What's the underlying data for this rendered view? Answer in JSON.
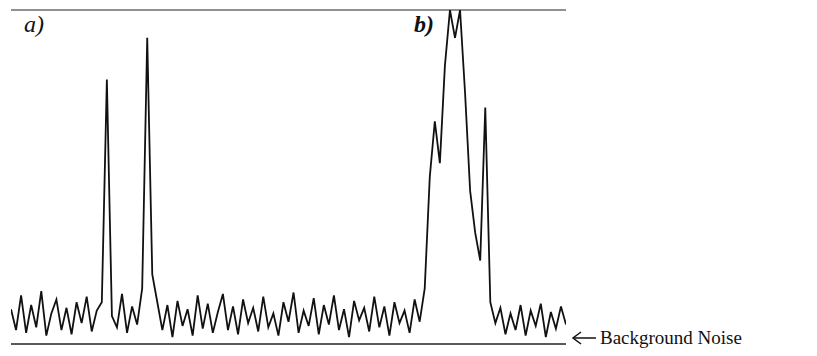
{
  "chart_data": {
    "type": "line",
    "annotations": [
      "a)",
      "b)",
      "Background Noise"
    ],
    "x": [
      0,
      5,
      10,
      15,
      20,
      25,
      30,
      35,
      40,
      45,
      50,
      55,
      60,
      65,
      70,
      75,
      80,
      85,
      90,
      95,
      100,
      105,
      110,
      115,
      120,
      125,
      130,
      135,
      140,
      145,
      150,
      155,
      160,
      165,
      170,
      175,
      180,
      185,
      190,
      195,
      200,
      205,
      210,
      215,
      220,
      225,
      230,
      235,
      240,
      245,
      250,
      255,
      260,
      265,
      270,
      275,
      280,
      285,
      290,
      295,
      300,
      305,
      310,
      315,
      320,
      325,
      330,
      335,
      340,
      345,
      350,
      355,
      360,
      365,
      370,
      375,
      380,
      385,
      390,
      395,
      400,
      405,
      410,
      415,
      420,
      425,
      430,
      435,
      440,
      445,
      450,
      455,
      460,
      465,
      470,
      475,
      480,
      485,
      490,
      495,
      500,
      505,
      510,
      515,
      520,
      525,
      530,
      535,
      540,
      545,
      550
    ],
    "values": [
      2.5,
      1,
      3.5,
      0.8,
      2.8,
      1.2,
      3.8,
      0.6,
      2.2,
      3.2,
      1,
      2.6,
      0.7,
      3,
      1.5,
      3.4,
      0.9,
      2.4,
      3,
      19,
      2,
      1.2,
      3.6,
      0.8,
      2.7,
      1.4,
      4,
      22,
      5,
      3,
      1,
      2.8,
      0.5,
      3.1,
      1.3,
      2.5,
      0.6,
      3.5,
      1.1,
      2.9,
      0.8,
      2.3,
      3.6,
      1,
      2.7,
      0.7,
      3.2,
      1.5,
      2.6,
      0.9,
      3.4,
      1.2,
      2.2,
      0.6,
      3,
      1.6,
      3.7,
      0.8,
      2.4,
      1.3,
      3.3,
      0.7,
      2.8,
      1.4,
      3.5,
      1,
      2.5,
      0.5,
      3.1,
      1.7,
      2.6,
      0.9,
      3.4,
      1.2,
      2.7,
      0.6,
      3,
      1.5,
      2.4,
      0.8,
      3.2,
      1.6,
      4,
      12,
      16,
      13,
      20,
      24,
      22,
      24,
      18,
      11,
      8,
      6,
      17,
      3,
      1.5,
      2.6,
      0.7,
      2.2,
      1,
      2.8,
      0.6,
      2.4,
      1.3,
      2.9,
      0.5,
      2.3,
      1.1,
      2.7,
      1.4
    ],
    "color": "#111111",
    "xlim": [
      0,
      550
    ],
    "xticks": [],
    "ylim": [
      0,
      24
    ],
    "yticks": [
      0,
      1,
      2,
      3,
      4,
      5,
      6,
      7,
      8,
      9,
      10,
      11,
      12,
      13,
      14,
      15,
      16,
      17,
      18,
      19,
      20,
      21,
      22,
      23,
      24
    ],
    "grid": true,
    "tick_labels": false
  }
}
